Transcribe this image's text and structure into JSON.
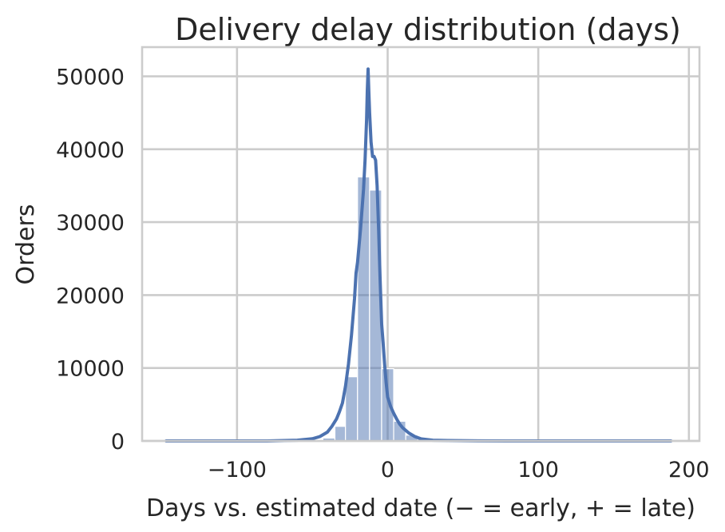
{
  "chart_data": {
    "type": "histogram",
    "title": "Delivery delay distribution (days)",
    "xlabel": "Days vs. estimated date (− = early, + = late)",
    "ylabel": "Orders",
    "xlim": [
      -163,
      207
    ],
    "ylim": [
      0,
      54000
    ],
    "xticks": [
      -100,
      0,
      100,
      200
    ],
    "xtick_labels": [
      "−100",
      "0",
      "100",
      "200"
    ],
    "yticks": [
      0,
      10000,
      20000,
      30000,
      40000,
      50000
    ],
    "ytick_labels": [
      "0",
      "10000",
      "20000",
      "30000",
      "40000",
      "50000"
    ],
    "grid": true,
    "bar_color": "#4c72b0",
    "bar_opacity": 0.5,
    "kde_color": "#4c72b0",
    "bins": [
      {
        "x0": -147,
        "x1": -43,
        "count": 0
      },
      {
        "x0": -43,
        "x1": -35,
        "count": 400
      },
      {
        "x0": -35,
        "x1": -28,
        "count": 2000
      },
      {
        "x0": -28,
        "x1": -20,
        "count": 8800
      },
      {
        "x0": -20,
        "x1": -12,
        "count": 36200
      },
      {
        "x0": -12,
        "x1": -4,
        "count": 34400
      },
      {
        "x0": -4,
        "x1": 4,
        "count": 9900
      },
      {
        "x0": 4,
        "x1": 12,
        "count": 2700
      },
      {
        "x0": 12,
        "x1": 20,
        "count": 800
      },
      {
        "x0": 20,
        "x1": 28,
        "count": 250
      },
      {
        "x0": 28,
        "x1": 188,
        "count": 0
      }
    ],
    "kde": {
      "x": [
        -147,
        -80,
        -60,
        -50,
        -45,
        -40,
        -37,
        -34,
        -32,
        -30,
        -28,
        -26,
        -24,
        -22,
        -21,
        -20,
        -18,
        -16,
        -15,
        -14,
        -13.5,
        -13,
        -12.5,
        -12,
        -11,
        -10,
        -9,
        -8,
        -7,
        -6,
        -5,
        -4,
        -3,
        -2,
        -1,
        0,
        2,
        4,
        6,
        8,
        10,
        14,
        18,
        22,
        30,
        40,
        60,
        100,
        188
      ],
      "y": [
        0,
        0,
        100,
        300,
        600,
        1200,
        2000,
        3000,
        4000,
        5200,
        7500,
        10500,
        14500,
        19500,
        23000,
        24500,
        29000,
        34500,
        38500,
        44000,
        48000,
        51000,
        48000,
        45000,
        41000,
        39000,
        39000,
        38500,
        35000,
        29000,
        22000,
        16000,
        13500,
        10500,
        8000,
        6000,
        4700,
        3800,
        3000,
        2300,
        1800,
        1100,
        600,
        300,
        100,
        50,
        10,
        0,
        0
      ]
    }
  }
}
